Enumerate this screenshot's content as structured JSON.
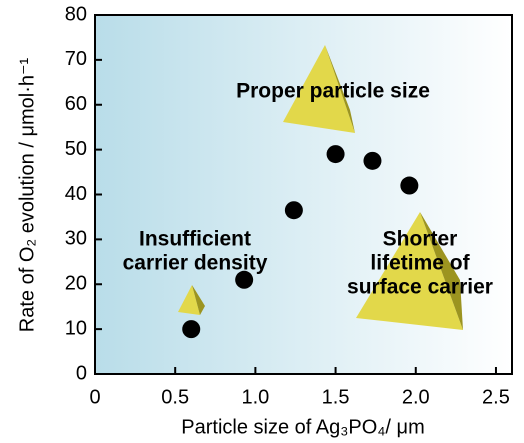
{
  "chart_data": {
    "type": "scatter",
    "x_label": "Particle size of Ag₃PO₄/ μm",
    "y_label": "Rate of O₂ evolution / μmol·h⁻¹",
    "x": [
      0.6,
      0.93,
      1.24,
      1.5,
      1.73,
      1.96
    ],
    "values": [
      10,
      21,
      36.5,
      49,
      47.5,
      42
    ],
    "color": "#000000",
    "xlim": [
      0,
      2.6
    ],
    "ylim": [
      0,
      80
    ],
    "xticks": [
      0,
      0.5,
      {
        "value": 1,
        "label": "1.0"
      },
      1.5,
      {
        "value": 2,
        "label": "2.0"
      },
      2.5
    ],
    "yticks": [
      0,
      10,
      20,
      30,
      40,
      50,
      60,
      70,
      80
    ],
    "grid": false,
    "annotations": [
      {
        "lines": [
          "Proper particle size"
        ]
      },
      {
        "lines": [
          "Insufficient",
          "carrier density"
        ]
      },
      {
        "lines": [
          "Shorter",
          "lifetime of",
          "surface carrier"
        ]
      }
    ]
  }
}
